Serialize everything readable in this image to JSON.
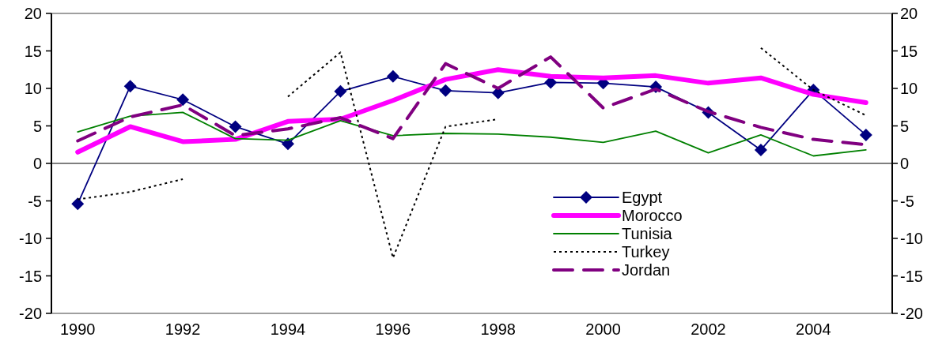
{
  "chart_data": {
    "type": "line",
    "x": [
      1990,
      1991,
      1992,
      1993,
      1994,
      1995,
      1996,
      1997,
      1998,
      1999,
      2000,
      2001,
      2002,
      2003,
      2004,
      2005
    ],
    "xlim": [
      1989.5,
      2005.5
    ],
    "xticks": [
      1990,
      1992,
      1994,
      1996,
      1998,
      2000,
      2002,
      2004
    ],
    "ylim": [
      -20,
      20
    ],
    "yticks": [
      -20,
      -15,
      -10,
      -5,
      0,
      5,
      10,
      15,
      20
    ],
    "y2lim": [
      -20,
      20
    ],
    "y2ticks": [
      -20,
      -15,
      -10,
      -5,
      0,
      5,
      10,
      15,
      20
    ],
    "legend": "bottom right",
    "series": [
      {
        "name": "Egypt",
        "color": "#000080",
        "marker": "diamond",
        "line_style": "solid",
        "values": [
          -5.4,
          10.3,
          8.5,
          4.9,
          2.6,
          9.6,
          11.6,
          9.7,
          9.4,
          10.8,
          10.7,
          10.2,
          6.8,
          1.8,
          9.8,
          3.8
        ]
      },
      {
        "name": "Morocco",
        "color": "#ff00ff",
        "line_style": "solid",
        "values": [
          1.5,
          4.9,
          2.9,
          3.2,
          5.6,
          5.9,
          8.4,
          11.2,
          12.5,
          11.6,
          11.4,
          11.7,
          10.7,
          11.4,
          9.2,
          8.1
        ]
      },
      {
        "name": "Tunisia",
        "color": "#008000",
        "line_style": "solid",
        "values": [
          4.2,
          6.3,
          6.8,
          3.3,
          3.1,
          5.7,
          3.7,
          4.0,
          3.9,
          3.5,
          2.8,
          4.3,
          1.4,
          3.8,
          1.0,
          1.8
        ]
      },
      {
        "name": "Turkey",
        "color": "#000000",
        "line_style": "dotted",
        "values": [
          -4.8,
          -3.8,
          -2.1,
          null,
          8.9,
          14.8,
          -12.6,
          4.9,
          5.9,
          null,
          null,
          null,
          null,
          15.4,
          9.8,
          6.4
        ]
      },
      {
        "name": "Jordan",
        "color": "#800080",
        "line_style": "dashed",
        "values": [
          3.0,
          6.2,
          7.8,
          3.7,
          4.6,
          6.1,
          3.3,
          13.3,
          10.0,
          14.2,
          7.4,
          9.9,
          6.9,
          4.8,
          3.2,
          2.5
        ]
      }
    ]
  }
}
